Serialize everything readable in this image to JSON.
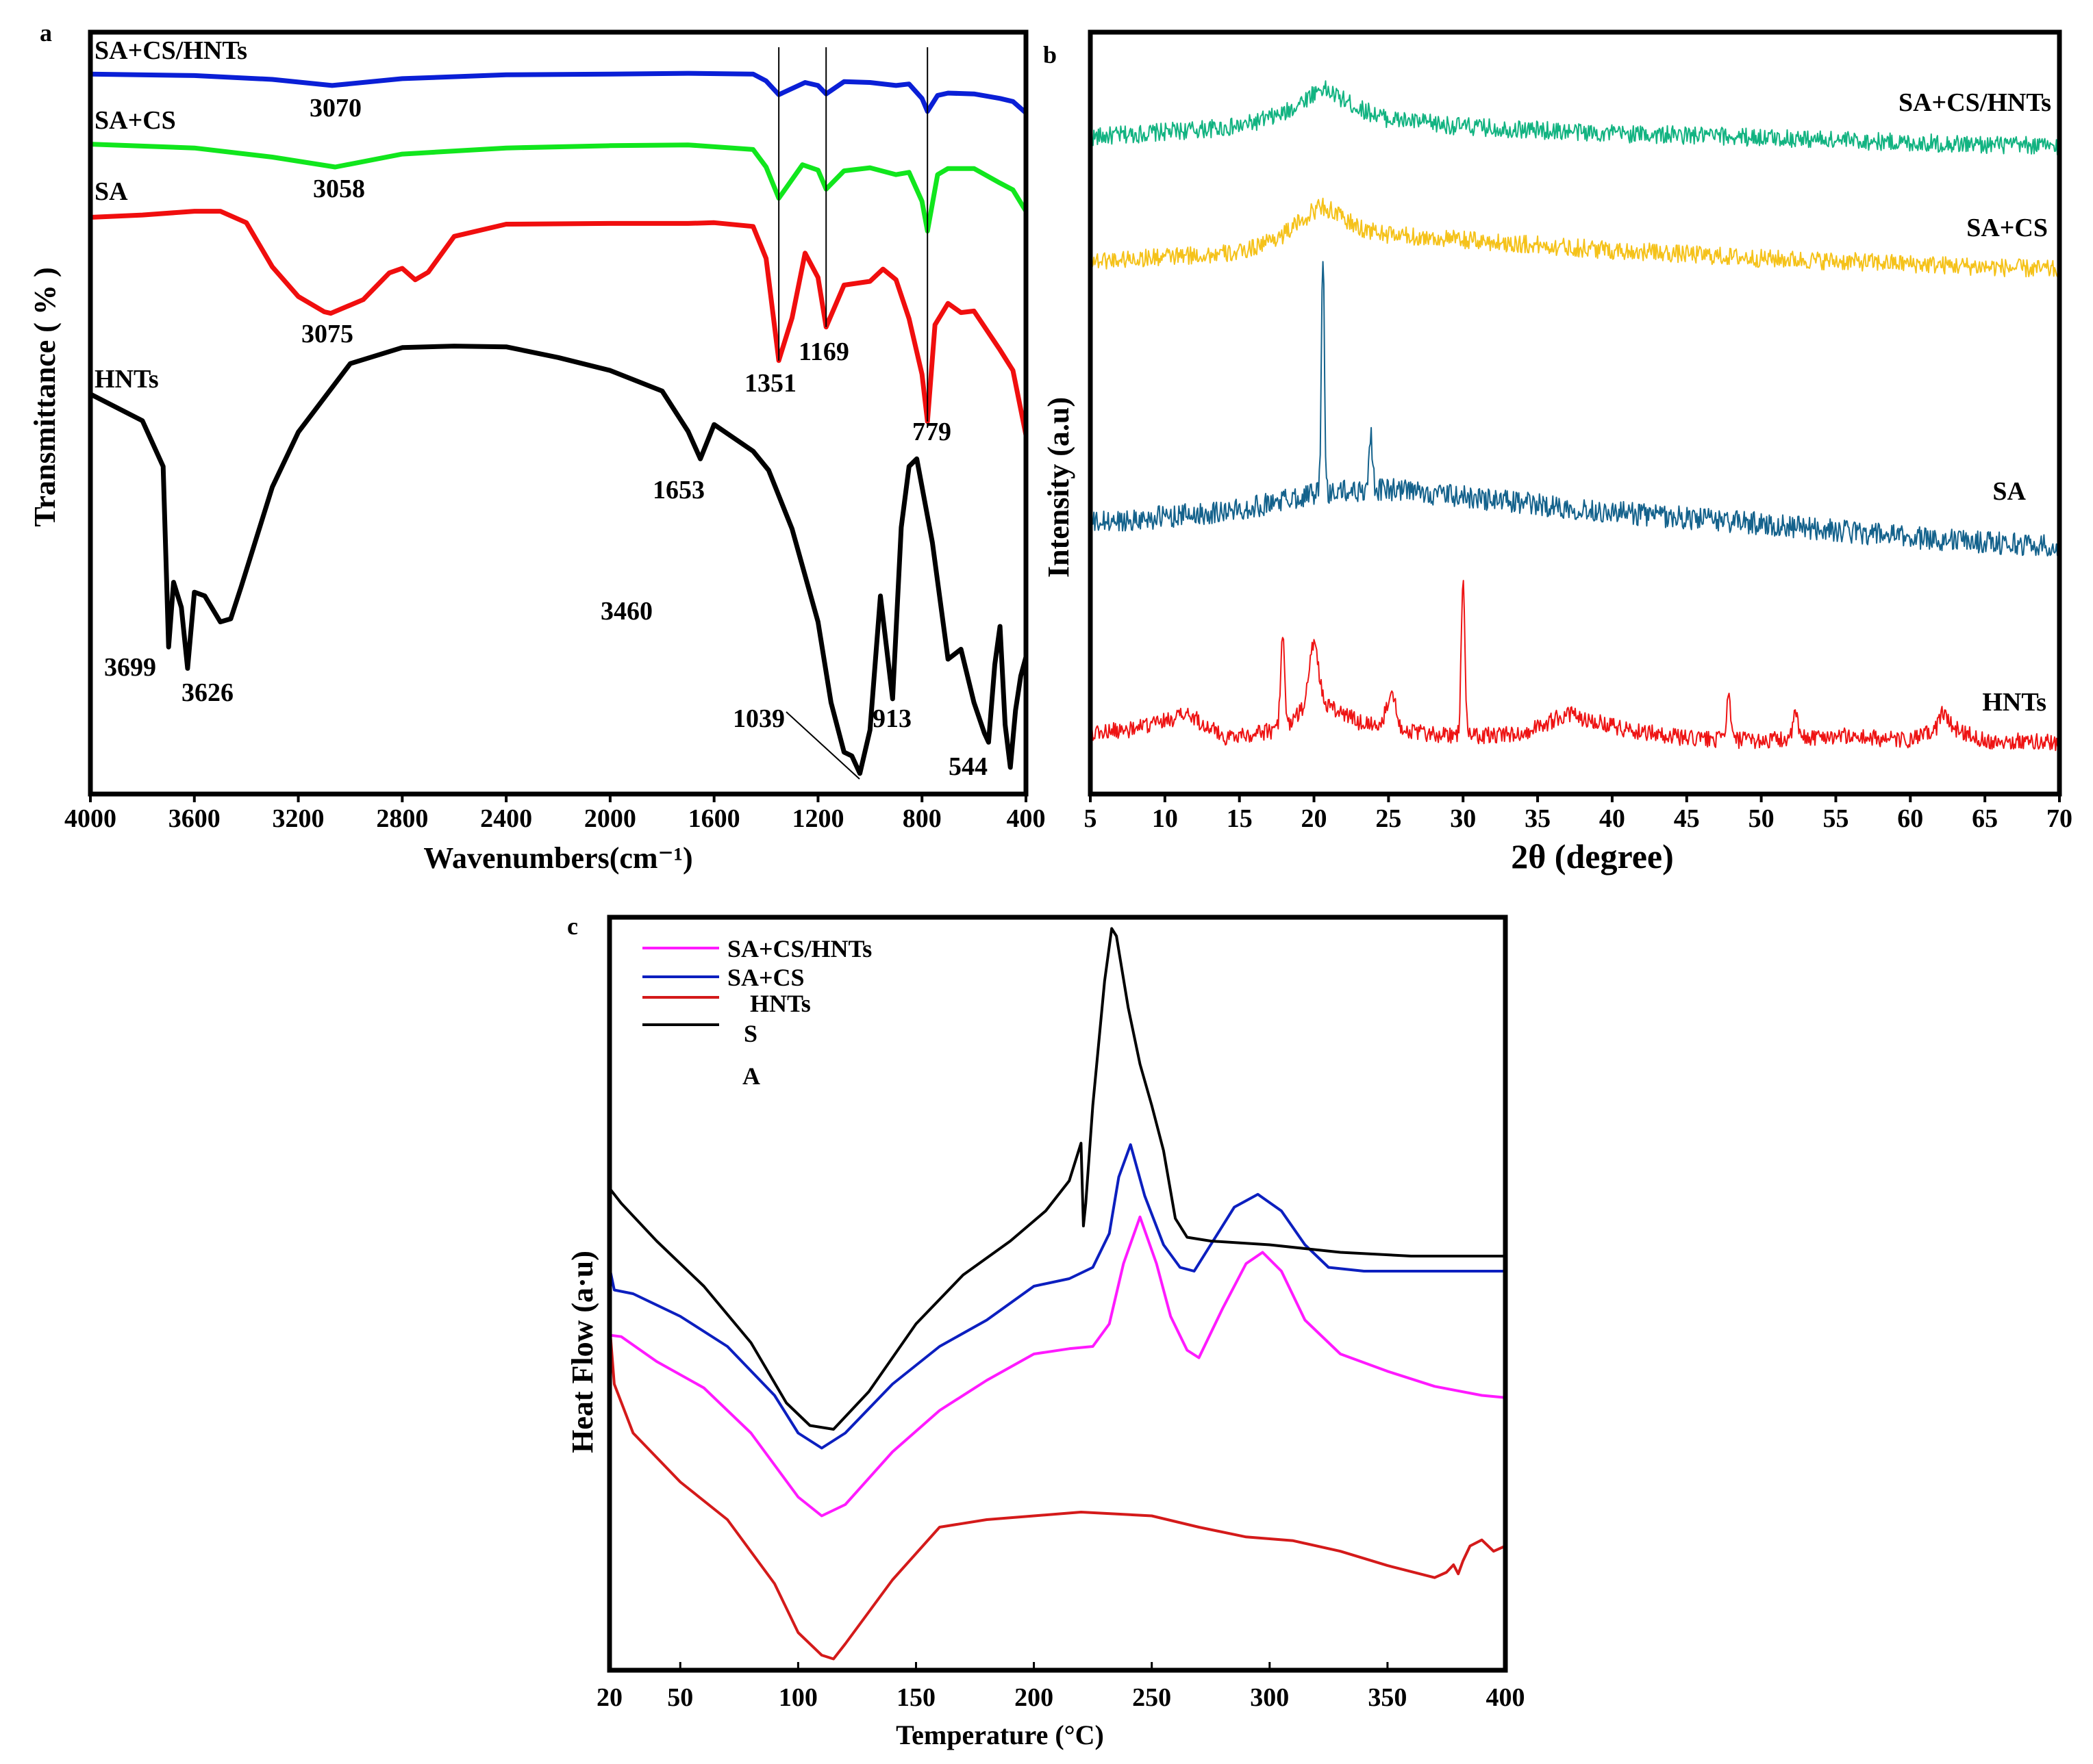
{
  "chart_data": [
    {
      "panel": "a",
      "type": "line",
      "xlabel": "Wavenumbers(cm⁻¹)",
      "ylabel": "Transmittance ( % )",
      "xlim": [
        4000,
        400
      ],
      "ylim": [
        0,
        100
      ],
      "xticks": [
        "4000",
        "3600",
        "3200",
        "2800",
        "2400",
        "2000",
        "1600",
        "1200",
        "800",
        "400"
      ],
      "series": [
        {
          "name": "SA+CS/HNTs",
          "color": "#0a1fd6",
          "x": [
            4000,
            3600,
            3300,
            3070,
            2800,
            2400,
            2000,
            1700,
            1450,
            1400,
            1351,
            1250,
            1200,
            1169,
            1100,
            1000,
            900,
            850,
            800,
            779,
            740,
            700,
            600,
            500,
            450,
            400
          ],
          "y": [
            94.5,
            94.3,
            93.8,
            93.0,
            93.9,
            94.4,
            94.5,
            94.6,
            94.5,
            93.6,
            91.8,
            93.4,
            93.0,
            91.9,
            93.5,
            93.4,
            93.0,
            93.2,
            91.3,
            89.6,
            91.7,
            92.0,
            91.9,
            91.3,
            90.9,
            89.4
          ],
          "label": "SA+CS/HNTs"
        },
        {
          "name": "SA+CS",
          "color": "#11e61d",
          "x": [
            4000,
            3600,
            3300,
            3058,
            2800,
            2400,
            2000,
            1700,
            1450,
            1400,
            1351,
            1260,
            1200,
            1169,
            1100,
            1000,
            900,
            850,
            800,
            779,
            740,
            700,
            600,
            500,
            450,
            400
          ],
          "y": [
            85.3,
            84.8,
            83.6,
            82.3,
            84.0,
            84.8,
            85.1,
            85.2,
            84.6,
            82.3,
            78.2,
            82.6,
            81.9,
            79.4,
            81.8,
            82.2,
            81.3,
            81.6,
            77.8,
            73.9,
            81.3,
            82.1,
            82.1,
            80.2,
            79.3,
            76.5
          ],
          "label": "SA+CS"
        },
        {
          "name": "SA",
          "color": "#f00e0e",
          "x": [
            4000,
            3800,
            3600,
            3500,
            3400,
            3300,
            3200,
            3100,
            3075,
            2950,
            2850,
            2800,
            2750,
            2700,
            2600,
            2400,
            2000,
            1700,
            1600,
            1450,
            1400,
            1351,
            1300,
            1250,
            1200,
            1169,
            1100,
            1000,
            950,
            900,
            850,
            800,
            779,
            750,
            700,
            650,
            600,
            500,
            450,
            400
          ],
          "y": [
            75.7,
            76.0,
            76.5,
            76.5,
            75.0,
            69.2,
            65.3,
            63.3,
            63.1,
            64.9,
            68.4,
            69.0,
            67.5,
            68.5,
            73.2,
            74.8,
            74.9,
            74.9,
            75.0,
            74.5,
            70.3,
            56.9,
            62.5,
            71.0,
            67.8,
            61.3,
            66.8,
            67.3,
            68.9,
            67.5,
            62.4,
            55.1,
            48.9,
            61.6,
            64.4,
            63.2,
            63.4,
            58.3,
            55.6,
            47.1
          ]
        },
        {
          "name": "HNTs",
          "color": "#000000",
          "x": [
            4000,
            3800,
            3720,
            3699,
            3680,
            3650,
            3626,
            3600,
            3560,
            3500,
            3460,
            3420,
            3300,
            3200,
            3000,
            2800,
            2600,
            2400,
            2200,
            2000,
            1800,
            1700,
            1653,
            1600,
            1450,
            1390,
            1300,
            1200,
            1150,
            1100,
            1070,
            1039,
            1000,
            960,
            913,
            880,
            850,
            820,
            790,
            760,
            700,
            650,
            600,
            560,
            544,
            520,
            500,
            480,
            460,
            440,
            420,
            400
          ],
          "y": [
            52.5,
            49.0,
            43.0,
            19.3,
            27.8,
            24.5,
            16.5,
            26.5,
            26.0,
            22.6,
            23.0,
            27.2,
            40.3,
            47.5,
            56.5,
            58.6,
            58.8,
            58.7,
            57.3,
            55.6,
            52.9,
            47.6,
            44.0,
            48.5,
            45.0,
            42.5,
            34.8,
            22.6,
            12.0,
            5.5,
            5.0,
            2.7,
            8.4,
            26.0,
            12.5,
            35.0,
            43.0,
            44.0,
            38.5,
            33.0,
            17.7,
            19.0,
            12.0,
            8.0,
            6.8,
            17.0,
            22.0,
            9.1,
            3.5,
            11.0,
            15.5,
            18.0
          ],
          "label": "HNTs"
        }
      ],
      "annotations": [
        "3070",
        "3058",
        "3075",
        "1351",
        "1169",
        "779",
        "1653",
        "3460",
        "3699",
        "3626",
        "1039",
        "913",
        "544"
      ],
      "vertical_lines": [
        1351,
        1169,
        779
      ],
      "panel_label": "a"
    },
    {
      "panel": "b",
      "type": "line",
      "xlabel": "2θ (degree)",
      "ylabel": "Intensity (a.u)",
      "xlim": [
        5,
        70
      ],
      "ylim": [
        0,
        100
      ],
      "xticks": [
        "5",
        "10",
        "15",
        "20",
        "25",
        "30",
        "35",
        "40",
        "45",
        "50",
        "55",
        "60",
        "65",
        "70"
      ],
      "series": [
        {
          "name": "SA+CS/HNTs",
          "color": "#12b381",
          "label": "SA+CS/HNTs",
          "baseline": [
            [
              5,
              86.2
            ],
            [
              15,
              87.6
            ],
            [
              18,
              89.3
            ],
            [
              20.5,
              92.7
            ],
            [
              23,
              90.0
            ],
            [
              25,
              88.6
            ],
            [
              30,
              87.6
            ],
            [
              40,
              86.7
            ],
            [
              50,
              86.2
            ],
            [
              60,
              85.5
            ],
            [
              70,
              85.0
            ]
          ],
          "peaks": [],
          "noise": 1.2
        },
        {
          "name": "SA+CS",
          "color": "#f5c21a",
          "label": "SA+CS",
          "baseline": [
            [
              5,
              70.0
            ],
            [
              15,
              71.0
            ],
            [
              18,
              73.5
            ],
            [
              20.5,
              77.3
            ],
            [
              23,
              74.3
            ],
            [
              25,
              73.4
            ],
            [
              30,
              72.7
            ],
            [
              40,
              71.4
            ],
            [
              50,
              70.3
            ],
            [
              60,
              69.6
            ],
            [
              70,
              68.8
            ]
          ],
          "peaks": [],
          "noise": 1.2
        },
        {
          "name": "SA",
          "color": "#14628c",
          "label": "SA",
          "baseline": [
            [
              5,
              35.5
            ],
            [
              15,
              37.3
            ],
            [
              20,
              39.5
            ],
            [
              25,
              40.0
            ],
            [
              30,
              39.0
            ],
            [
              40,
              37.0
            ],
            [
              50,
              35.5
            ],
            [
              60,
              33.7
            ],
            [
              70,
              32.5
            ]
          ],
          "peaks": [
            [
              20.6,
              31.0,
              0.1
            ],
            [
              23.8,
              7.5,
              0.12
            ]
          ],
          "noise": 1.5
        },
        {
          "name": "HNTs",
          "color": "#ee1414",
          "label": "HNTs",
          "baseline": [
            [
              5,
              8.0
            ],
            [
              8,
              8.5
            ],
            [
              11.5,
              10.5
            ],
            [
              14,
              7.5
            ],
            [
              18,
              8.5
            ],
            [
              20,
              12.5
            ],
            [
              23,
              9.5
            ],
            [
              27,
              8.0
            ],
            [
              30,
              7.5
            ],
            [
              34,
              8.0
            ],
            [
              37,
              10.5
            ],
            [
              41,
              8.5
            ],
            [
              45,
              7.3
            ],
            [
              50,
              7.0
            ],
            [
              55,
              7.7
            ],
            [
              60,
              7.0
            ],
            [
              62.5,
              9.0
            ],
            [
              65,
              7.0
            ],
            [
              70,
              6.8
            ]
          ],
          "peaks": [
            [
              17.9,
              12.0,
              0.14
            ],
            [
              20.0,
              7.5,
              0.3
            ],
            [
              25.2,
              5.0,
              0.3
            ],
            [
              30.0,
              21.0,
              0.12
            ],
            [
              47.8,
              5.5,
              0.14
            ],
            [
              52.3,
              3.5,
              0.14
            ],
            [
              62.2,
              2.0,
              0.25
            ]
          ],
          "noise": 1.1
        }
      ],
      "panel_label": "b"
    },
    {
      "panel": "c",
      "type": "line",
      "xlabel": "Temperature (°C)",
      "ylabel": "Heat Flow (a·u)",
      "xlim": [
        20,
        400
      ],
      "ylim": [
        0,
        100
      ],
      "xticks": [
        "20",
        "50",
        "100",
        "150",
        "200",
        "250",
        "300",
        "350",
        "400"
      ],
      "legend": [
        "SA+CS/HNTs",
        "SA+CS",
        "HNTs",
        "S"
      ],
      "legend_extra": "A",
      "series": [
        {
          "name": "SA+CS/HNTs",
          "color": "#ff1aff",
          "x": [
            20,
            25,
            40,
            60,
            80,
            100,
            110,
            120,
            140,
            160,
            180,
            200,
            215,
            225,
            232,
            238,
            245,
            252,
            258,
            265,
            270,
            280,
            290,
            297,
            305,
            315,
            330,
            350,
            370,
            390,
            400
          ],
          "y": [
            44.5,
            44.3,
            41.0,
            37.5,
            31.5,
            23.0,
            20.5,
            22.0,
            29.0,
            34.5,
            38.5,
            42.0,
            42.7,
            43.0,
            46.0,
            54.0,
            60.2,
            54.0,
            47.0,
            42.5,
            41.5,
            48.0,
            54.0,
            55.5,
            53.0,
            46.5,
            42.0,
            39.7,
            37.7,
            36.5,
            36.2
          ]
        },
        {
          "name": "SA+CS",
          "color": "#0c1fbf",
          "x": [
            20,
            22,
            30,
            50,
            70,
            90,
            100,
            110,
            120,
            140,
            160,
            180,
            200,
            215,
            225,
            232,
            236,
            241,
            247,
            255,
            262,
            268,
            275,
            285,
            295,
            305,
            315,
            325,
            340,
            360,
            380,
            400
          ],
          "y": [
            53.5,
            50.5,
            50.0,
            47.0,
            43.0,
            36.5,
            31.5,
            29.5,
            31.5,
            38.0,
            43.0,
            46.5,
            51.0,
            52.0,
            53.5,
            58.0,
            65.5,
            69.8,
            63.0,
            56.5,
            53.5,
            53.0,
            56.5,
            61.5,
            63.2,
            61.0,
            56.5,
            53.5,
            53.0,
            53.0,
            53.0,
            53.0
          ]
        },
        {
          "name": "HNTs",
          "color": "#d41a1a",
          "x": [
            20,
            22,
            30,
            50,
            70,
            90,
            100,
            110,
            115,
            120,
            140,
            160,
            180,
            200,
            220,
            250,
            270,
            290,
            310,
            330,
            350,
            370,
            375,
            378,
            380,
            382,
            385,
            390,
            395,
            400
          ],
          "y": [
            46.0,
            38.0,
            31.5,
            25.0,
            20.0,
            11.5,
            5.0,
            2.0,
            1.5,
            3.5,
            12.0,
            19.0,
            20.0,
            20.5,
            21.0,
            20.5,
            19.0,
            17.7,
            17.2,
            15.8,
            13.9,
            12.3,
            13.0,
            14.0,
            12.8,
            14.5,
            16.5,
            17.3,
            15.8,
            16.5
          ]
        },
        {
          "name": "S",
          "color": "#000000",
          "x": [
            20,
            25,
            40,
            60,
            80,
            95,
            105,
            115,
            130,
            150,
            170,
            190,
            205,
            215,
            220,
            221,
            222,
            225,
            230,
            233,
            235,
            240,
            245,
            250,
            255,
            260,
            265,
            275,
            300,
            330,
            360,
            400
          ],
          "y": [
            64.0,
            62.0,
            57.0,
            51.0,
            43.5,
            35.5,
            32.5,
            32.0,
            37.0,
            46.0,
            52.5,
            57.0,
            61.0,
            65.0,
            70.0,
            59.0,
            62.0,
            75.0,
            91.5,
            98.5,
            97.5,
            88.0,
            80.5,
            75.0,
            69.0,
            60.0,
            57.5,
            57.0,
            56.5,
            55.5,
            55.0,
            55.0
          ]
        }
      ],
      "panel_label": "c"
    }
  ]
}
